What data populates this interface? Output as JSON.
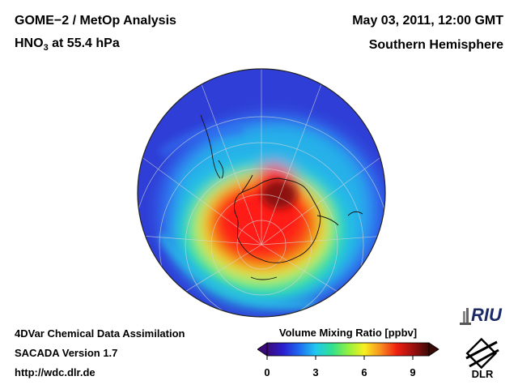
{
  "header": {
    "title_line1": "GOME−2 / MetOp Analysis",
    "title_line2_species": "HNO",
    "title_line2_subscript": "3",
    "title_line2_rest": " at 55.4 hPa",
    "date_line": "May 03, 2011, 12:00 GMT",
    "hemisphere": "Southern Hemisphere"
  },
  "footer": {
    "line1": "4DVar Chemical Data Assimilation",
    "line2": "SACADA Version 1.7",
    "line3": "http://wdc.dlr.de"
  },
  "colorbar": {
    "title": "Volume Mixing Ratio [ppbv]",
    "min": 0,
    "max": 10,
    "ticks": [
      "0",
      "3",
      "6",
      "9"
    ],
    "tick_values": [
      0,
      3,
      6,
      9
    ],
    "colors": [
      "#3c0a78",
      "#2a1fd0",
      "#1e6cf0",
      "#20c8f0",
      "#30e090",
      "#90f040",
      "#f8f020",
      "#f89020",
      "#f02010",
      "#a01010",
      "#3a0a06"
    ]
  },
  "logos": {
    "riu": "RIU",
    "dlr": "DLR"
  },
  "map": {
    "field_colors": {
      "background": "#2f3ed6",
      "low": "#2f6ff0",
      "mid_low": "#25bde8",
      "mid": "#2ee58c",
      "mid_high": "#f2ee25",
      "high": "#f06318",
      "peak": "#ff1e12",
      "core": "#7a0e0a"
    }
  }
}
